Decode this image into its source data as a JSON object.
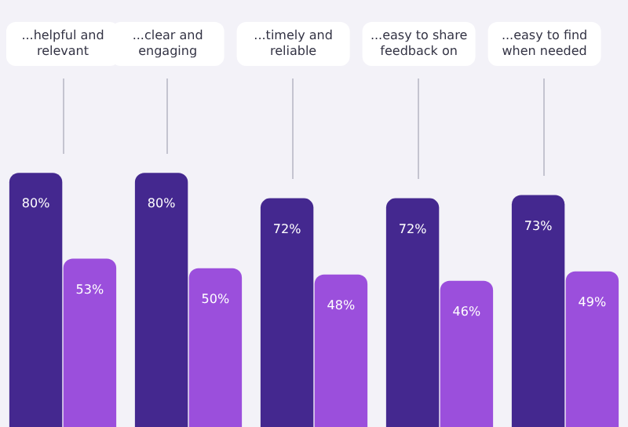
{
  "chart_data": {
    "type": "bar",
    "categories": [
      "...helpful and relevant",
      "...clear and engaging",
      "...timely and reliable",
      "...easy to share feedback on",
      "...easy to find when needed"
    ],
    "series": [
      {
        "color": "#44288f",
        "values": [
          80,
          80,
          72,
          72,
          73
        ],
        "value_labels": [
          "80%",
          "80%",
          "72%",
          "72%",
          "73%"
        ]
      },
      {
        "color": "#9b4fdc",
        "values": [
          53,
          50,
          48,
          46,
          49
        ],
        "value_labels": [
          "53%",
          "50%",
          "48%",
          "46%",
          "49%"
        ]
      }
    ],
    "legend": false
  }
}
